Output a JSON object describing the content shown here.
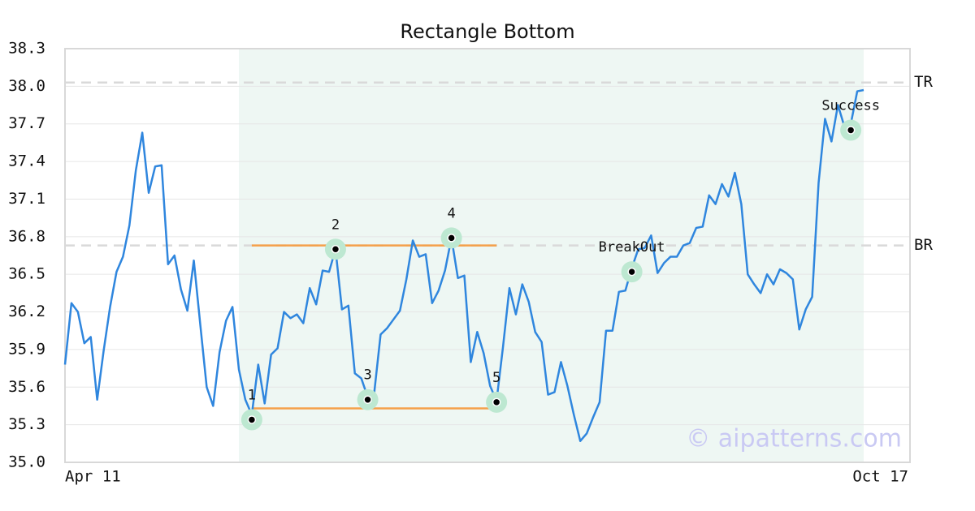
{
  "chart_data": {
    "type": "line",
    "title": "Rectangle Bottom",
    "values": [
      35.78,
      36.27,
      36.2,
      35.95,
      36.0,
      35.5,
      35.89,
      36.24,
      36.52,
      36.64,
      36.89,
      37.33,
      37.63,
      37.15,
      37.36,
      37.37,
      36.58,
      36.65,
      36.38,
      36.21,
      36.61,
      36.1,
      35.6,
      35.45,
      35.88,
      36.13,
      36.24,
      35.74,
      35.5,
      35.38,
      35.78,
      35.47,
      35.86,
      35.91,
      36.2,
      36.15,
      36.18,
      36.11,
      36.39,
      36.26,
      36.53,
      36.52,
      36.7,
      36.22,
      36.25,
      35.71,
      35.67,
      35.52,
      35.55,
      36.02,
      36.07,
      36.14,
      36.21,
      36.46,
      36.77,
      36.64,
      36.66,
      36.27,
      36.37,
      36.53,
      36.79,
      36.47,
      36.49,
      35.8,
      36.04,
      35.87,
      35.61,
      35.49,
      35.92,
      36.39,
      36.18,
      36.42,
      36.28,
      36.04,
      35.96,
      35.54,
      35.56,
      35.8,
      35.61,
      35.38,
      35.17,
      35.23,
      35.36,
      35.48,
      36.05,
      36.05,
      36.36,
      36.37,
      36.55,
      36.7,
      36.71,
      36.81,
      36.51,
      36.59,
      36.64,
      36.64,
      36.73,
      36.75,
      36.87,
      36.88,
      37.13,
      37.06,
      37.22,
      37.12,
      37.31,
      37.06,
      36.5,
      36.42,
      36.35,
      36.5,
      36.42,
      36.54,
      36.51,
      36.46,
      36.06,
      36.22,
      36.32,
      37.23,
      37.74,
      37.56,
      37.85,
      37.68,
      37.7,
      37.96,
      37.97
    ],
    "color": "#2f86de",
    "xlim": [
      0,
      124
    ],
    "xticks": [
      {
        "value": 0,
        "label": "Apr 11"
      },
      {
        "value": 124,
        "label": "Oct 17"
      }
    ],
    "ylim": [
      35.0,
      38.3
    ],
    "yticks": [
      {
        "value": 35.0,
        "label": "35.0"
      },
      {
        "value": 35.3,
        "label": "35.3"
      },
      {
        "value": 35.6,
        "label": "35.6"
      },
      {
        "value": 35.9,
        "label": "35.9"
      },
      {
        "value": 36.2,
        "label": "36.2"
      },
      {
        "value": 36.5,
        "label": "36.5"
      },
      {
        "value": 36.8,
        "label": "36.8"
      },
      {
        "value": 37.1,
        "label": "37.1"
      },
      {
        "value": 37.4,
        "label": "37.4"
      },
      {
        "value": 37.7,
        "label": "37.7"
      },
      {
        "value": 38.0,
        "label": "38.0"
      },
      {
        "value": 38.3,
        "label": "38.3"
      }
    ],
    "grid": true,
    "shaded_span": [
      27,
      124
    ],
    "levels": [
      {
        "label": "TR",
        "value": 38.03
      },
      {
        "label": "BR",
        "value": 36.73
      }
    ],
    "pattern_lines": [
      {
        "value": 36.73,
        "from": 29,
        "to": 67,
        "color": "#f5a04a"
      },
      {
        "value": 35.43,
        "from": 29,
        "to": 67,
        "color": "#f5a04a"
      }
    ],
    "markers": [
      {
        "label": "1",
        "x": 29,
        "y": 35.34
      },
      {
        "label": "2",
        "x": 42,
        "y": 36.7
      },
      {
        "label": "3",
        "x": 47,
        "y": 35.5
      },
      {
        "label": "4",
        "x": 60,
        "y": 36.79
      },
      {
        "label": "5",
        "x": 67,
        "y": 35.48
      },
      {
        "label": "BreakOut",
        "x": 88,
        "y": 36.52
      },
      {
        "label": "Success",
        "x": 122,
        "y": 37.65
      }
    ],
    "watermark": "© aipatterns.com"
  }
}
